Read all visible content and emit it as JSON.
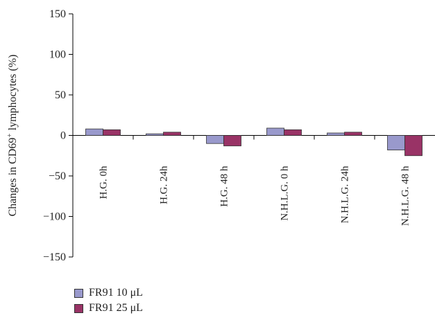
{
  "chart_data": {
    "type": "bar",
    "title": "",
    "xlabel": "",
    "ylabel_pre": "Changes in CD69",
    "ylabel_sup": "+",
    "ylabel_post": " lymphocytes (%)",
    "ylim": [
      -150,
      150
    ],
    "yticks": [
      150,
      100,
      50,
      0,
      -50,
      -100,
      -150
    ],
    "ytick_labels": [
      "150",
      "100",
      "50",
      "0",
      "−50",
      "−100",
      "−150"
    ],
    "categories": [
      "H.G. 0h",
      "H.G. 24h",
      "H.G. 48 h",
      "N.H.L.G. 0 h",
      "N.H.L.G. 24h",
      "N.H.L.G. 48 h"
    ],
    "series": [
      {
        "name": "FR91 10 μL",
        "color": "#9999cc",
        "values": [
          8,
          2,
          -10,
          9,
          3,
          -18
        ]
      },
      {
        "name": "FR91 25 μL",
        "color": "#993366",
        "values": [
          7,
          4,
          -13,
          7,
          4,
          -25
        ]
      }
    ],
    "legend_position": "bottom-left",
    "grid": false
  }
}
